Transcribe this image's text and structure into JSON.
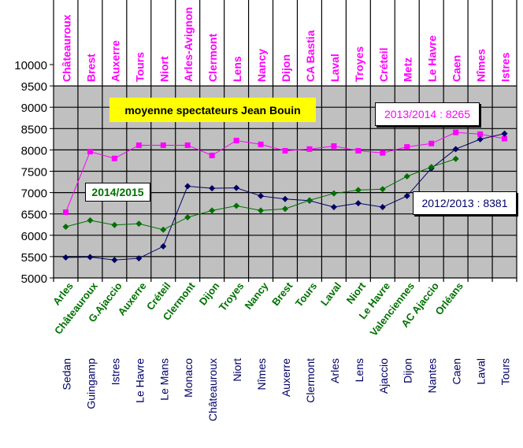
{
  "chart_data": {
    "type": "line",
    "title": "moyenne spectateurs Jean Bouin",
    "ylim": [
      5000,
      10000
    ],
    "yticks": [
      5000,
      5500,
      6000,
      6500,
      7000,
      7500,
      8000,
      8500,
      9000,
      9500,
      10000
    ],
    "grid": true,
    "series": [
      {
        "name": "2013/2014",
        "color": "#ff00ff",
        "marker": "square",
        "label": "2013/2014 : 8265",
        "opponents": [
          "Châteauroux",
          "Brest",
          "Auxerre",
          "Tours",
          "Niort",
          "Arles-Avignon",
          "Clermont",
          "Lens",
          "Nancy",
          "Dijon",
          "CA Bastia",
          "Laval",
          "Troyes",
          "Créteil",
          "Metz",
          "Le Havre",
          "Caen",
          "Nîmes",
          "Istres"
        ],
        "values": [
          6540,
          7960,
          7800,
          8110,
          8110,
          8110,
          7870,
          8220,
          8130,
          7980,
          8020,
          8090,
          7980,
          7930,
          8070,
          8150,
          8410,
          8370,
          8265
        ]
      },
      {
        "name": "2012/2013",
        "color": "#000066",
        "marker": "diamond",
        "label": "2012/2013 : 8381",
        "opponents": [
          "Sedan",
          "Guingamp",
          "Istres",
          "Le Havre",
          "Le Mans",
          "Monaco",
          "Châteauroux",
          "Niort",
          "Nîmes",
          "Auxerre",
          "Clermont",
          "Arles",
          "Lens",
          "Ajaccio",
          "Dijon",
          "Nantes",
          "Caen",
          "Laval",
          "Tours"
        ],
        "values": [
          5480,
          5490,
          5420,
          5460,
          5740,
          7150,
          7100,
          7110,
          6920,
          6850,
          6810,
          6660,
          6750,
          6660,
          6920,
          7570,
          8020,
          8250,
          8381
        ]
      },
      {
        "name": "2014/2015",
        "color": "#007000",
        "marker": "diamond",
        "label": "2014/2015",
        "opponents": [
          "Arles",
          "Châteauroux",
          "G.Ajaccio",
          "Auxerre",
          "Créteil",
          "Clermont",
          "Dijon",
          "Troyes",
          "Nancy",
          "Brest",
          "Tours",
          "Laval",
          "Niort",
          "Le Havre",
          "Valenciennes",
          "AC Ajaccio",
          "Orléans"
        ],
        "values": [
          6200,
          6350,
          6240,
          6270,
          6130,
          6420,
          6580,
          6690,
          6580,
          6620,
          6820,
          6980,
          7060,
          7080,
          7380,
          7600,
          7790
        ]
      }
    ]
  }
}
